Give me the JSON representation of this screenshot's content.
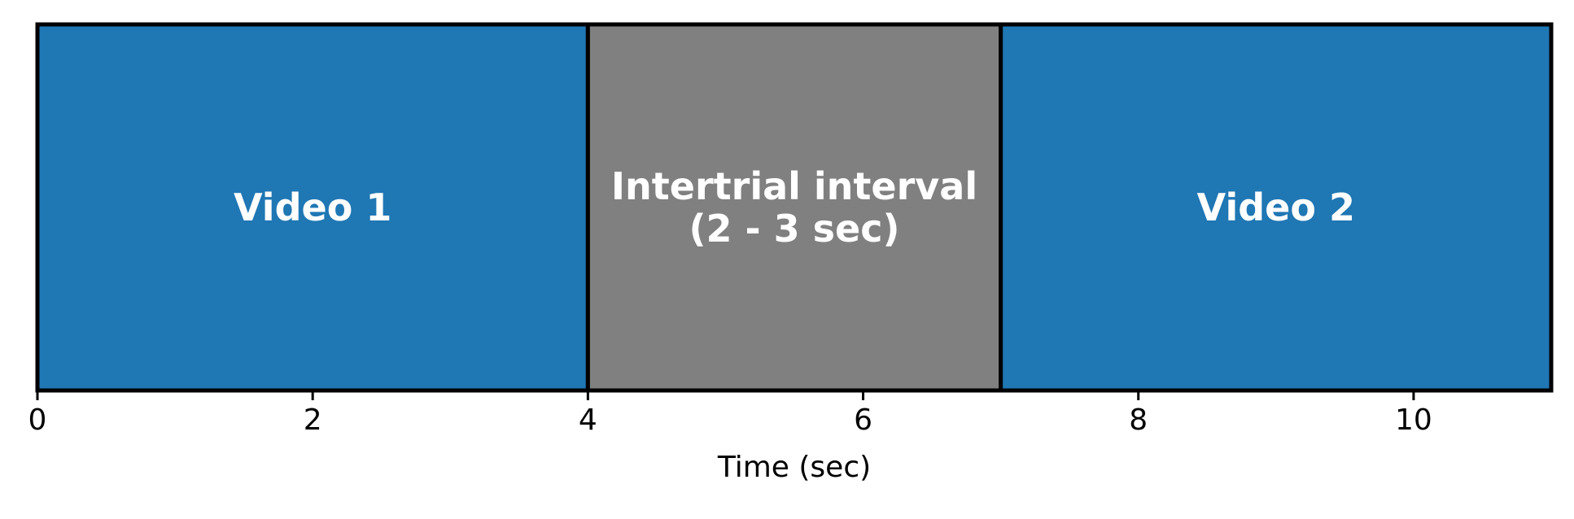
{
  "chart_data": {
    "type": "bar",
    "orientation": "horizontal-timeline",
    "title": "",
    "xlabel": "Time (sec)",
    "ylabel": "",
    "xlim": [
      0,
      11
    ],
    "grid": false,
    "legend": "none",
    "xticks": [
      0,
      2,
      4,
      6,
      8,
      10
    ],
    "segments": [
      {
        "label": "Video 1",
        "start": 0,
        "end": 4,
        "color": "#1f77b4"
      },
      {
        "label": "Intertrial interval\n(2 - 3 sec)",
        "start": 4,
        "end": 7,
        "color": "#808080"
      },
      {
        "label": "Video 2",
        "start": 7,
        "end": 11,
        "color": "#1f77b4"
      }
    ]
  }
}
